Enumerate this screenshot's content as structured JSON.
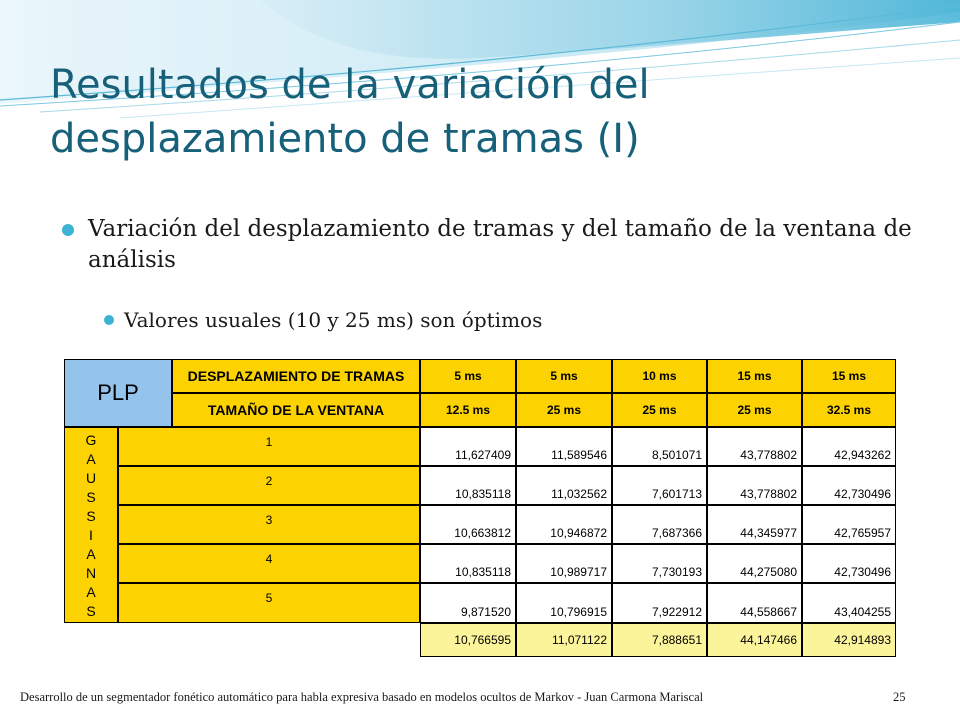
{
  "slide": {
    "title": "Resultados de la variación del desplazamiento de tramas (I)",
    "bullet_main": "Variación del desplazamiento de tramas y del tamaño de la ventana de análisis",
    "bullet_sub": "Valores usuales (10 y 25 ms) son óptimos",
    "footer": "Desarrollo de un segmentador fonético automático para habla expresiva basado en modelos ocultos de Markov - Juan Carmona Mariscal",
    "page_number": "25"
  },
  "table": {
    "corner_label": "PLP",
    "row_label_shift": "DESPLAZAMIENTO DE TRAMAS",
    "row_label_window": "TAMAÑO DE LA VENTANA",
    "shift_values": [
      "5 ms",
      "5 ms",
      "10 ms",
      "15 ms",
      "15 ms"
    ],
    "window_values": [
      "12.5 ms",
      "25 ms",
      "25 ms",
      "25 ms",
      "32.5 ms"
    ],
    "gaussianas_letters": [
      "G",
      "A",
      "U",
      "S",
      "S",
      "I",
      "A",
      "N",
      "A",
      "S"
    ],
    "rows": [
      {
        "gaussians": "1",
        "values": [
          "11,627409",
          "11,589546",
          "8,501071",
          "43,778802",
          "42,943262"
        ]
      },
      {
        "gaussians": "2",
        "values": [
          "10,835118",
          "11,032562",
          "7,601713",
          "43,778802",
          "42,730496"
        ]
      },
      {
        "gaussians": "3",
        "values": [
          "10,663812",
          "10,946872",
          "7,687366",
          "44,345977",
          "42,765957"
        ]
      },
      {
        "gaussians": "4",
        "values": [
          "10,835118",
          "10,989717",
          "7,730193",
          "44,275080",
          "42,730496"
        ]
      },
      {
        "gaussians": "5",
        "values": [
          "9,871520",
          "10,796915",
          "7,922912",
          "44,558667",
          "43,404255"
        ]
      }
    ],
    "summary_values": [
      "10,766595",
      "11,071122",
      "7,888651",
      "44,147466",
      "42,914893"
    ]
  },
  "colors": {
    "title": "#17607a",
    "bullet": "#3cb3d3",
    "header_yellow": "#fcd300",
    "summary_yellow": "#fcf49a",
    "plp_blue": "#94c4ec"
  }
}
